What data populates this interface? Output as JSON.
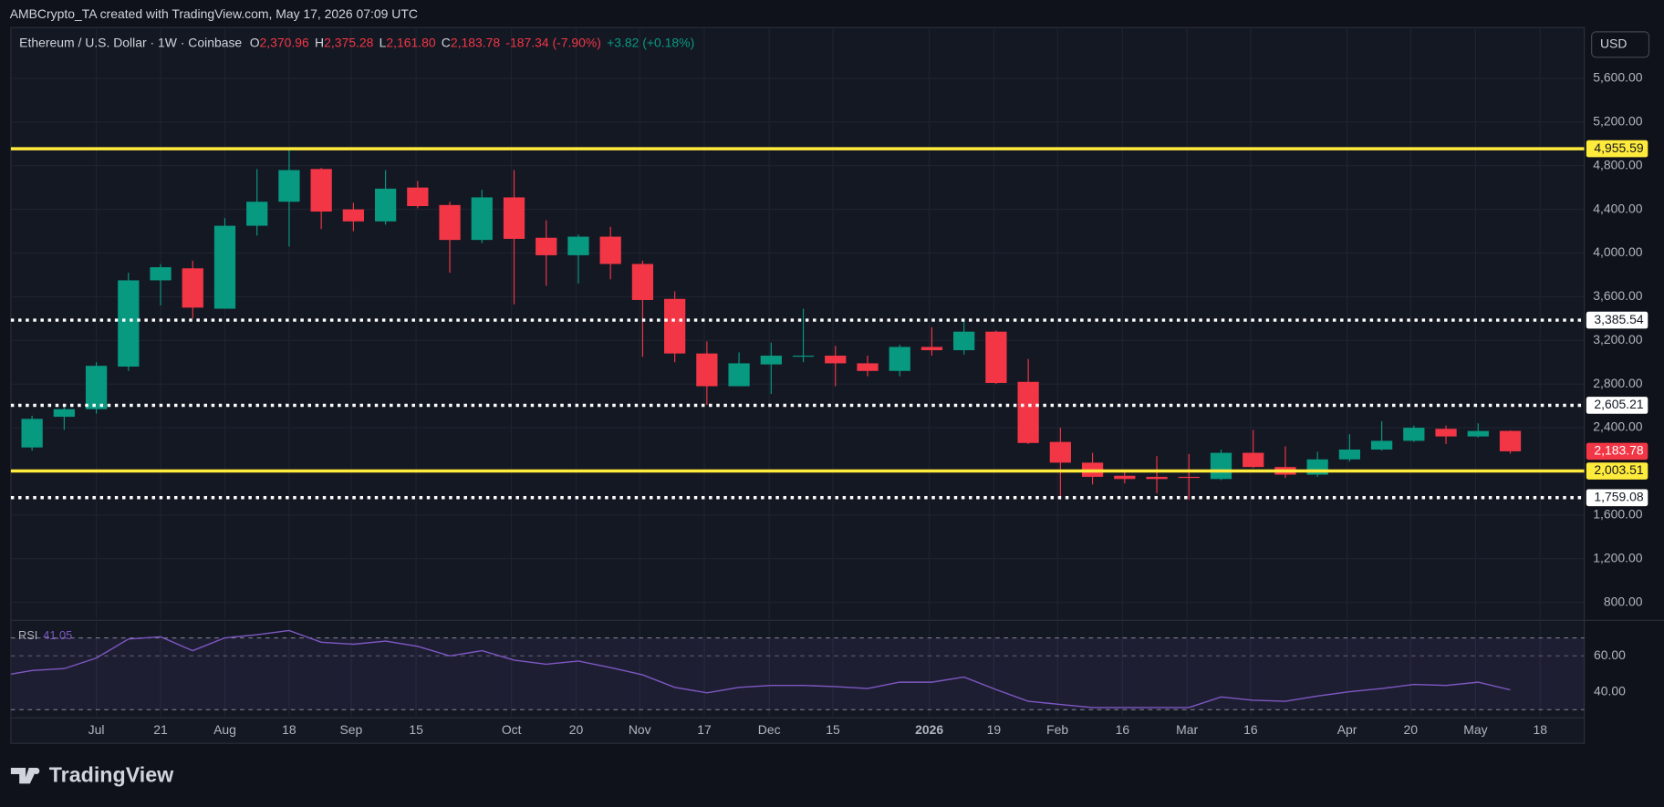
{
  "header": {
    "credit": "AMBCrypto_TA created with TradingView.com, May 17, 2026 07:09 UTC"
  },
  "chart_data": {
    "type": "candlestick",
    "title": "Ethereum / U.S. Dollar · 1W · Coinbase",
    "ohlc_legend": [
      {
        "key": "O",
        "value": "2,370.96"
      },
      {
        "key": "H",
        "value": "2,375.28"
      },
      {
        "key": "L",
        "value": "2,161.80"
      },
      {
        "key": "C",
        "value": "2,183.78"
      }
    ],
    "change": "-187.34 (-7.90%)",
    "after_hours": "+3.82 (+0.18%)",
    "currency": "USD",
    "up_color": "#089981",
    "down_color": "#f23645",
    "open": [
      2219,
      2500,
      2570,
      2960,
      3750,
      3860,
      3490,
      4250,
      4470,
      4770,
      4400,
      4290,
      4600,
      4440,
      4120,
      4510,
      4140,
      3980,
      4150,
      3900,
      3580,
      3080,
      2780,
      2980,
      3050,
      3060,
      2990,
      2920,
      3140,
      3110,
      3280,
      2820,
      2270,
      2080,
      1960,
      1950,
      1950,
      1930,
      2170,
      2040,
      1970,
      2110,
      2200,
      2280,
      2390,
      2320,
      2370.96
    ],
    "high": [
      2510,
      2610,
      3000,
      3820,
      3900,
      3930,
      4320,
      4770,
      4955,
      4780,
      4460,
      4760,
      4660,
      4470,
      4580,
      4760,
      4300,
      4170,
      4240,
      3930,
      3650,
      3190,
      3090,
      3180,
      3490,
      3150,
      3060,
      3160,
      3320,
      3400,
      3290,
      3030,
      2400,
      2170,
      2000,
      2140,
      2160,
      2200,
      2380,
      2230,
      2180,
      2340,
      2460,
      2420,
      2420,
      2440,
      2375.28
    ],
    "low": [
      2190,
      2380,
      2530,
      2920,
      3520,
      3400,
      3490,
      4160,
      4060,
      4220,
      4200,
      4260,
      4410,
      3820,
      4090,
      3530,
      3700,
      3720,
      3760,
      3050,
      3000,
      2610,
      2790,
      2710,
      3000,
      2780,
      2870,
      2870,
      3060,
      3070,
      2800,
      2250,
      1740,
      1880,
      1890,
      1800,
      1740,
      1920,
      2030,
      1940,
      1950,
      2090,
      2190,
      2270,
      2250,
      2310,
      2161.8
    ],
    "close": [
      2481,
      2570,
      2967,
      3750,
      3870,
      3500,
      4250,
      4470,
      4760,
      4380,
      4290,
      4590,
      4430,
      4120,
      4510,
      4130,
      3980,
      4150,
      3900,
      3570,
      3080,
      2780,
      2990,
      3060,
      3060,
      2990,
      2920,
      3140,
      3110,
      3280,
      2810,
      2260,
      2080,
      1950,
      1930,
      1930,
      1940,
      2170,
      2040,
      1970,
      2110,
      2200,
      2280,
      2400,
      2320,
      2370,
      2183.78
    ],
    "xlim": [
      -0.66,
      48.3
    ],
    "xticks": [
      {
        "value": 2,
        "label": "Jul"
      },
      {
        "value": 4,
        "label": "21"
      },
      {
        "value": 6,
        "label": "Aug"
      },
      {
        "value": 8,
        "label": "18"
      },
      {
        "value": 9.93,
        "label": "Sep"
      },
      {
        "value": 11.95,
        "label": "15"
      },
      {
        "value": 14.92,
        "label": "Oct"
      },
      {
        "value": 16.93,
        "label": "20"
      },
      {
        "value": 18.91,
        "label": "Nov"
      },
      {
        "value": 20.92,
        "label": "17"
      },
      {
        "value": 22.94,
        "label": "Dec"
      },
      {
        "value": 24.92,
        "label": "15"
      },
      {
        "value": 27.92,
        "label": "2026"
      },
      {
        "value": 29.93,
        "label": "19"
      },
      {
        "value": 31.91,
        "label": "Feb"
      },
      {
        "value": 33.93,
        "label": "16"
      },
      {
        "value": 35.94,
        "label": "Mar"
      },
      {
        "value": 37.92,
        "label": "16"
      },
      {
        "value": 40.92,
        "label": "Apr"
      },
      {
        "value": 42.9,
        "label": "20"
      },
      {
        "value": 44.92,
        "label": "May"
      },
      {
        "value": 46.93,
        "label": "18"
      }
    ],
    "ylim": [
      645,
      6046
    ],
    "yticks": [
      {
        "value": 800,
        "label": "800.00"
      },
      {
        "value": 1200,
        "label": "1,200.00"
      },
      {
        "value": 1600,
        "label": "1,600.00"
      },
      {
        "value": 2400,
        "label": "2,400.00"
      },
      {
        "value": 2800,
        "label": "2,800.00"
      },
      {
        "value": 3200,
        "label": "3,200.00"
      },
      {
        "value": 3600,
        "label": "3,600.00"
      },
      {
        "value": 4000,
        "label": "4,000.00"
      },
      {
        "value": 4400,
        "label": "4,400.00"
      },
      {
        "value": 4800,
        "label": "4,800.00"
      },
      {
        "value": 5200,
        "label": "5,200.00"
      },
      {
        "value": 5600,
        "label": "5,600.00"
      }
    ],
    "grid": true,
    "levels": [
      {
        "value": 4955.59,
        "label": "4,955.59",
        "color": "#ffeb3b",
        "style": "solid"
      },
      {
        "value": 3385.54,
        "label": "3,385.54",
        "color": "#ffffff",
        "style": "dotted"
      },
      {
        "value": 2605.21,
        "label": "2,605.21",
        "color": "#ffffff",
        "style": "dotted"
      },
      {
        "value": 2003.51,
        "label": "2,003.51",
        "color": "#ffeb3b",
        "style": "solid"
      },
      {
        "value": 1759.08,
        "label": "1,759.08",
        "color": "#ffffff",
        "style": "dotted"
      }
    ],
    "last_price": {
      "value": 2183.78,
      "label": "2,183.78"
    },
    "rsi": {
      "type": "line",
      "name": "RSI",
      "color": "#7e57c2",
      "values": [
        51.8,
        52.9,
        58.8,
        69.4,
        70.6,
        62.9,
        70,
        71.8,
        74.1,
        67.6,
        66.5,
        68.2,
        65.3,
        60,
        62.9,
        57.6,
        55.3,
        57.1,
        53.5,
        49.4,
        42.4,
        39.4,
        42.4,
        43.5,
        43.5,
        42.9,
        41.8,
        45.3,
        45.3,
        48.2,
        41.2,
        34.7,
        32.9,
        31.2,
        31.2,
        31.2,
        31.2,
        37.1,
        35.3,
        34.7,
        37.6,
        40,
        41.8,
        44.1,
        43.5,
        45.3,
        41.05
      ],
      "value_label": "41.05",
      "ylim": [
        26,
        78
      ],
      "yticks": [
        {
          "value": 40,
          "label": "40.00"
        },
        {
          "value": 60,
          "label": "60.00"
        }
      ],
      "bands": [
        30,
        70
      ]
    }
  },
  "footer": {
    "brand": "TradingView"
  }
}
